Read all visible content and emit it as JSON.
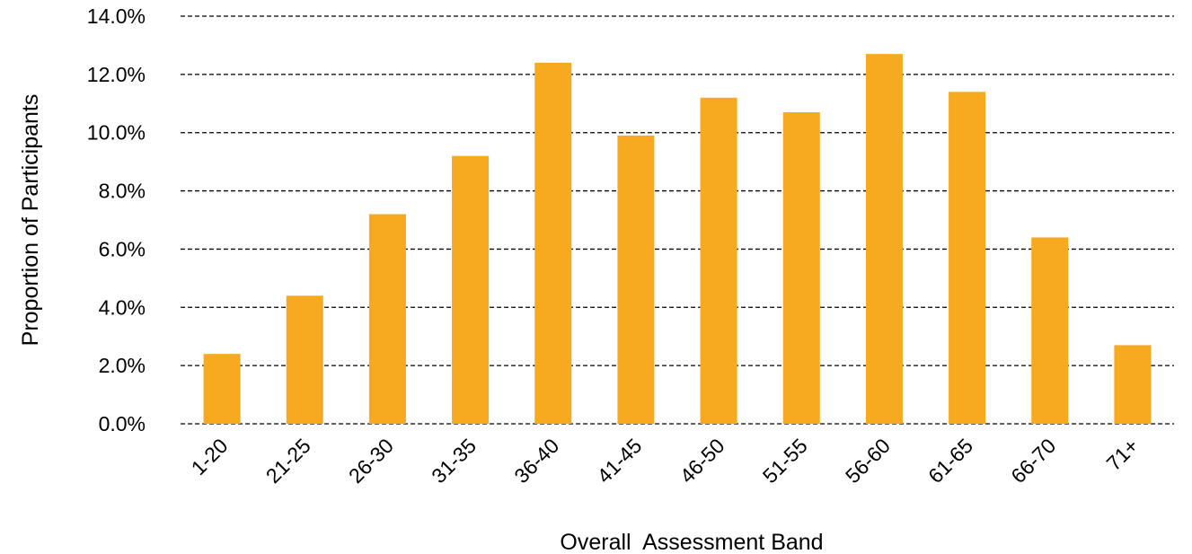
{
  "chart_data": {
    "type": "bar",
    "title": "",
    "xlabel": "Overall  Assessment Band",
    "ylabel": "Proportion of Participants",
    "categories": [
      "1-20",
      "21-25",
      "26-30",
      "31-35",
      "36-40",
      "41-45",
      "46-50",
      "51-55",
      "56-60",
      "61-65",
      "66-70",
      "71+"
    ],
    "values": [
      2.4,
      4.4,
      7.2,
      9.2,
      12.4,
      9.9,
      11.2,
      10.7,
      12.7,
      11.4,
      6.4,
      2.7
    ],
    "ylim": [
      0,
      14
    ],
    "yticks": [
      "0.0%",
      "2.0%",
      "4.0%",
      "6.0%",
      "8.0%",
      "10.0%",
      "12.0%",
      "14.0%"
    ],
    "grid": "horizontal dashed",
    "bar_color": "#F7A91F"
  }
}
